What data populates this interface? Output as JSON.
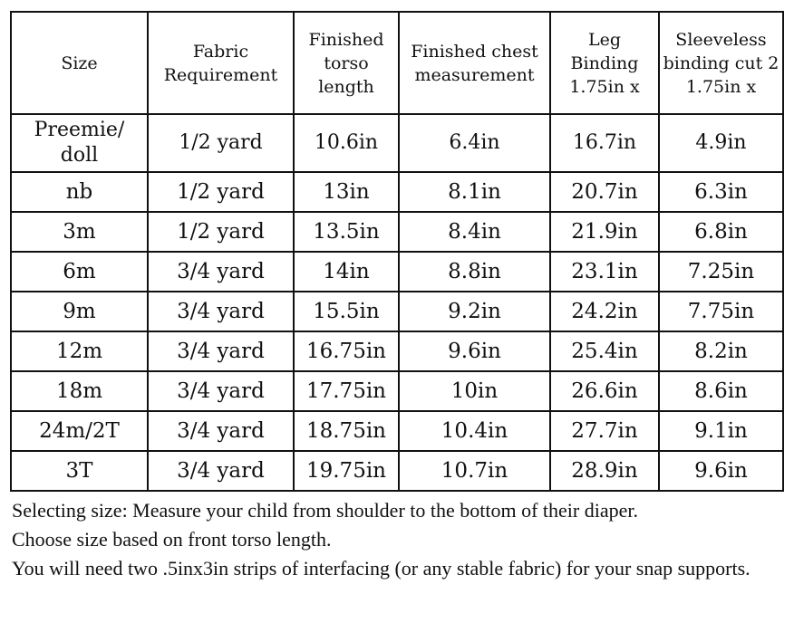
{
  "headers": [
    "Size",
    "Fabric Requirement",
    "Finished torso length",
    "Finished chest measurement",
    "Leg Binding 1.75in x",
    "Sleeveless binding cut 2 1.75in x"
  ],
  "rows": [
    [
      "Preemie/ doll",
      "1/2 yard",
      "10.6in",
      "6.4in",
      "16.7in",
      "4.9in"
    ],
    [
      "nb",
      "1/2 yard",
      "13in",
      "8.1in",
      "20.7in",
      "6.3in"
    ],
    [
      "3m",
      "1/2 yard",
      "13.5in",
      "8.4in",
      "21.9in",
      "6.8in"
    ],
    [
      "6m",
      "3/4 yard",
      "14in",
      "8.8in",
      "23.1in",
      "7.25in"
    ],
    [
      "9m",
      "3/4 yard",
      "15.5in",
      "9.2in",
      "24.2in",
      "7.75in"
    ],
    [
      "12m",
      "3/4 yard",
      "16.75in",
      "9.6in",
      "25.4in",
      "8.2in"
    ],
    [
      "18m",
      "3/4 yard",
      "17.75in",
      "10in",
      "26.6in",
      "8.6in"
    ],
    [
      "24m/2T",
      "3/4 yard",
      "18.75in",
      "10.4in",
      "27.7in",
      "9.1in"
    ],
    [
      "3T",
      "3/4 yard",
      "19.75in",
      "10.7in",
      "28.9in",
      "9.6in"
    ]
  ],
  "notes": [
    "Selecting size: Measure your child from shoulder to the bottom of their diaper.",
    "Choose size based on front torso length.",
    "You will need two .5inx3in strips of interfacing (or any stable fabric) for your snap supports."
  ]
}
